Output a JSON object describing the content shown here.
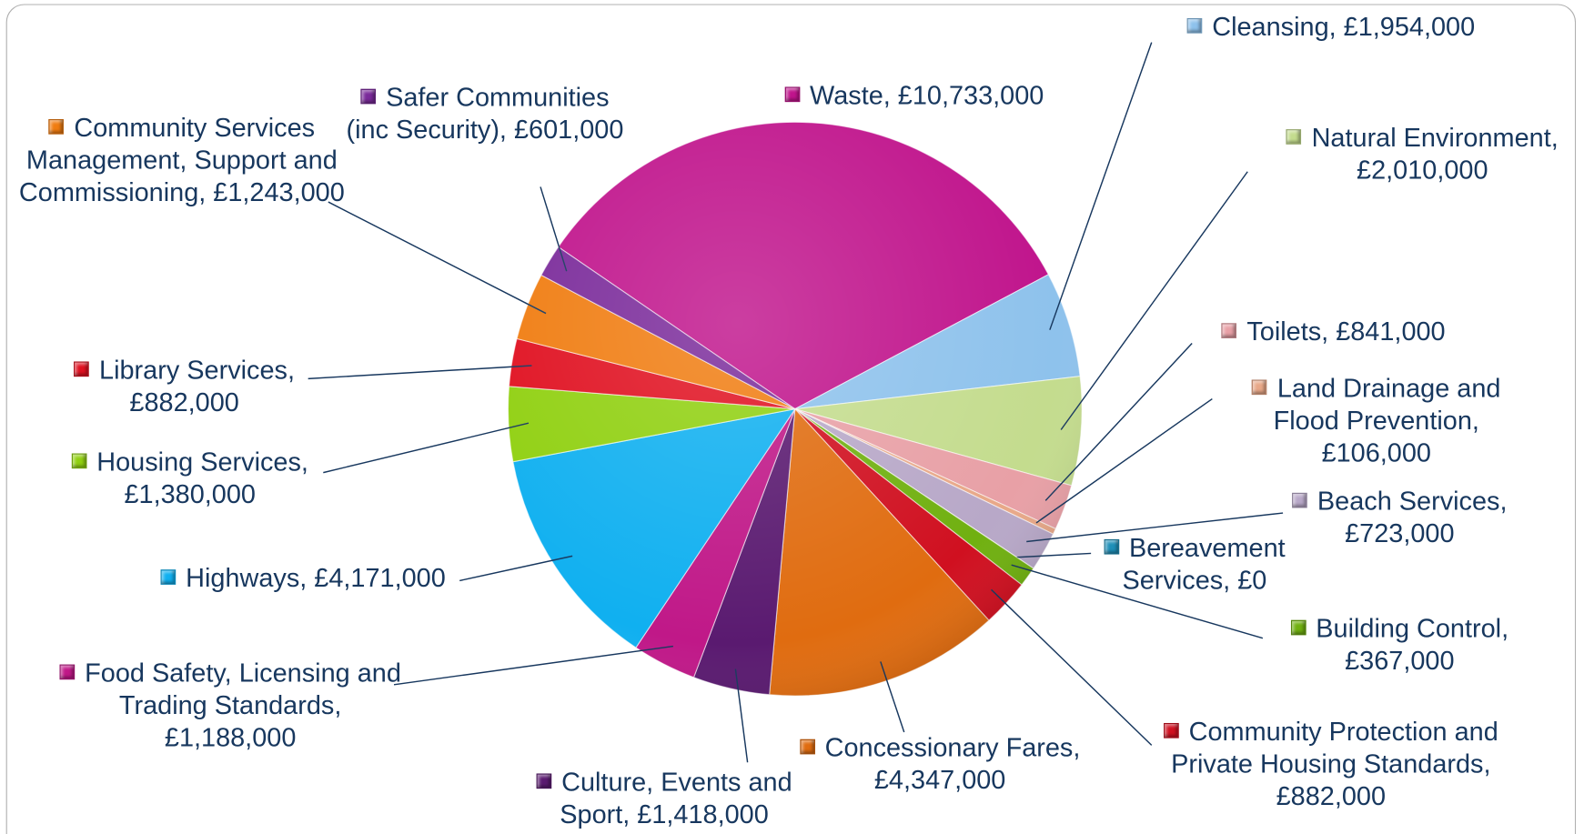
{
  "chart_data": {
    "type": "pie",
    "labels": [
      "Waste, £10,733,000",
      "Cleansing, £1,954,000",
      "Natural Environment, £2,010,000",
      "Toilets, £841,000",
      "Land Drainage and Flood Prevention, £106,000",
      "Beach Services, £723,000",
      "Bereavement Services, £0",
      "Building Control, £367,000",
      "Community Protection and Private Housing Standards, £882,000",
      "Concessionary Fares, £4,347,000",
      "Culture, Events and Sport, £1,418,000",
      "Food Safety, Licensing and Trading Standards, £1,188,000",
      "Highways, £4,171,000",
      "Housing Services, £1,380,000",
      "Library Services, £882,000",
      "Community Services Management, Support and Commissioning, £1,243,000",
      "Safer Communities (inc Security), £601,000"
    ],
    "values": [
      10733000,
      1954000,
      2010000,
      841000,
      106000,
      723000,
      0,
      367000,
      882000,
      4347000,
      1418000,
      1188000,
      4171000,
      1380000,
      882000,
      1243000,
      601000
    ],
    "colors": [
      "#c0148c",
      "#8ec2ec",
      "#c4dc8e",
      "#e8a0a6",
      "#e8a888",
      "#b8a8c8",
      "#1e8fb8",
      "#70b010",
      "#d01020",
      "#e06c10",
      "#5a1a70",
      "#c01888",
      "#10b0f0",
      "#90d010",
      "#e01020",
      "#f07c10",
      "#7a2a9a"
    ]
  }
}
